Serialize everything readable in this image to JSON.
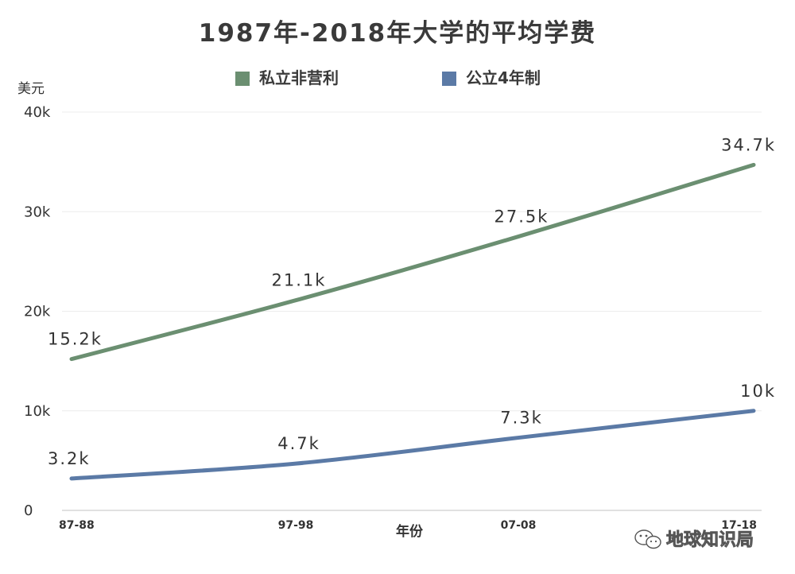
{
  "chart_data": {
    "type": "line",
    "title": "1987年-2018年大学的平均学费",
    "ylabel": "美元",
    "xlabel": "年份",
    "categories": [
      "87-88",
      "97-98",
      "07-08",
      "17-18"
    ],
    "ylim": [
      0,
      40000
    ],
    "yticks": [
      {
        "value": 0,
        "label": "0"
      },
      {
        "value": 10000,
        "label": "10k"
      },
      {
        "value": 20000,
        "label": "20k"
      },
      {
        "value": 30000,
        "label": "30k"
      },
      {
        "value": 40000,
        "label": "40k"
      }
    ],
    "grid": true,
    "legend_position": "top",
    "series": [
      {
        "name": "私立非营利",
        "color": "#6b8f71",
        "values": [
          15200,
          21100,
          27500,
          34700
        ],
        "labels": [
          "15.2k",
          "21.1k",
          "27.5k",
          "34.7k"
        ]
      },
      {
        "name": "公立4年制",
        "color": "#5b7aa6",
        "values": [
          3200,
          4700,
          7300,
          10000
        ],
        "labels": [
          "3.2k",
          "4.7k",
          "7.3k",
          "10k"
        ]
      }
    ]
  },
  "watermark": {
    "text": "地球知识局",
    "icon": "wechat-icon"
  }
}
